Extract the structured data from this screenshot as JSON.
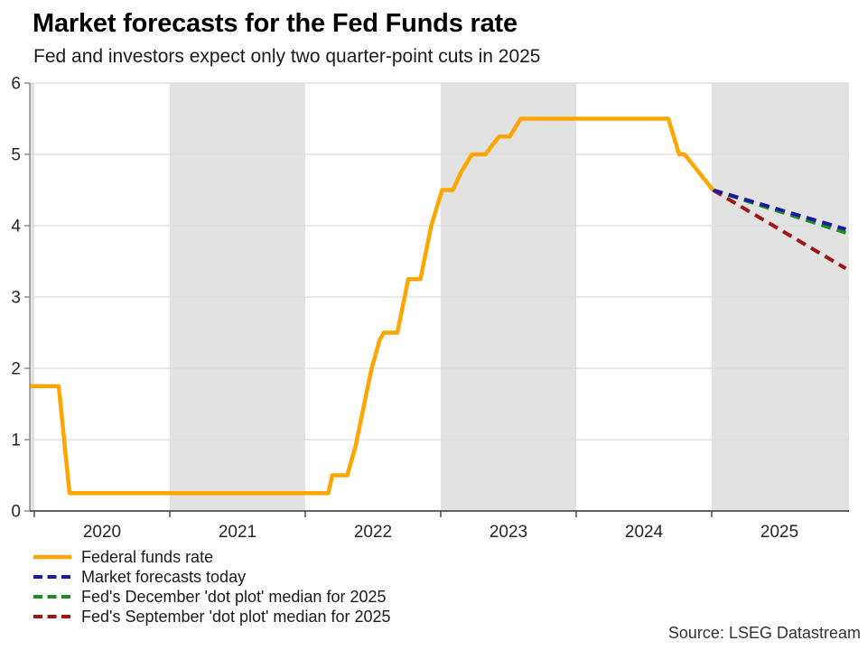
{
  "header": {
    "title": "Market forecasts for the Fed Funds rate",
    "subtitle": "Fed and investors expect only two quarter-point cuts in 2025"
  },
  "footer": {
    "source": "Source: LSEG Datastream"
  },
  "chart_data": {
    "type": "line",
    "title": "Market forecasts for the Fed Funds rate",
    "subtitle": "Fed and investors expect only two quarter-point cuts in 2025",
    "xlabel": "",
    "ylabel": "",
    "xlim": [
      2019.967,
      2026.013
    ],
    "ylim": [
      0,
      6
    ],
    "y_ticks": [
      0,
      1,
      2,
      3,
      4,
      5,
      6
    ],
    "x_ticks": [
      2020,
      2021,
      2022,
      2023,
      2024,
      2025
    ],
    "x_tick_labels": [
      "2020",
      "2021",
      "2022",
      "2023",
      "2024",
      "2025"
    ],
    "grid": "horizontal",
    "legend_position": "bottom-left",
    "shaded_bands": [
      [
        2019.967,
        2020
      ],
      [
        2021,
        2022
      ],
      [
        2023,
        2024
      ],
      [
        2025,
        2026.013
      ]
    ],
    "series": [
      {
        "name": "Federal funds rate",
        "color": "#ffa500",
        "style": "solid",
        "width": 4.5,
        "points": [
          [
            2019.97,
            1.75
          ],
          [
            2020.18,
            1.75
          ],
          [
            2020.26,
            0.25
          ],
          [
            2022.17,
            0.25
          ],
          [
            2022.2,
            0.5
          ],
          [
            2022.31,
            0.5
          ],
          [
            2022.37,
            0.9
          ],
          [
            2022.43,
            1.45
          ],
          [
            2022.49,
            2.0
          ],
          [
            2022.55,
            2.4
          ],
          [
            2022.58,
            2.5
          ],
          [
            2022.68,
            2.5
          ],
          [
            2022.76,
            3.25
          ],
          [
            2022.85,
            3.25
          ],
          [
            2022.93,
            4.0
          ],
          [
            2023.01,
            4.5
          ],
          [
            2023.09,
            4.5
          ],
          [
            2023.15,
            4.75
          ],
          [
            2023.23,
            5.0
          ],
          [
            2023.33,
            5.0
          ],
          [
            2023.43,
            5.25
          ],
          [
            2023.51,
            5.25
          ],
          [
            2023.59,
            5.5
          ],
          [
            2024.68,
            5.5
          ],
          [
            2024.76,
            5.0
          ],
          [
            2024.8,
            5.0
          ],
          [
            2025.01,
            4.5
          ]
        ]
      },
      {
        "name": "Market forecasts today",
        "color": "#1a1aa8",
        "style": "dashed",
        "width": 4,
        "points": [
          [
            2025.01,
            4.5
          ],
          [
            2025.99,
            3.95
          ]
        ]
      },
      {
        "name": "Fed's December 'dot plot' median for 2025",
        "color": "#1e8c1e",
        "style": "dashed",
        "width": 4,
        "points": [
          [
            2025.01,
            4.5
          ],
          [
            2025.99,
            3.9
          ]
        ]
      },
      {
        "name": "Fed's September 'dot plot' median for 2025",
        "color": "#a01414",
        "style": "dashed",
        "width": 4,
        "points": [
          [
            2025.01,
            4.5
          ],
          [
            2025.99,
            3.4
          ]
        ]
      }
    ],
    "layout": {
      "band_color": "#e2e2e2",
      "grid_color": "#dcdcdc",
      "yaxis_color": "#8c8c8c",
      "xaxis_color": "#4d4d4d",
      "tick_label_color": "#262626"
    }
  }
}
